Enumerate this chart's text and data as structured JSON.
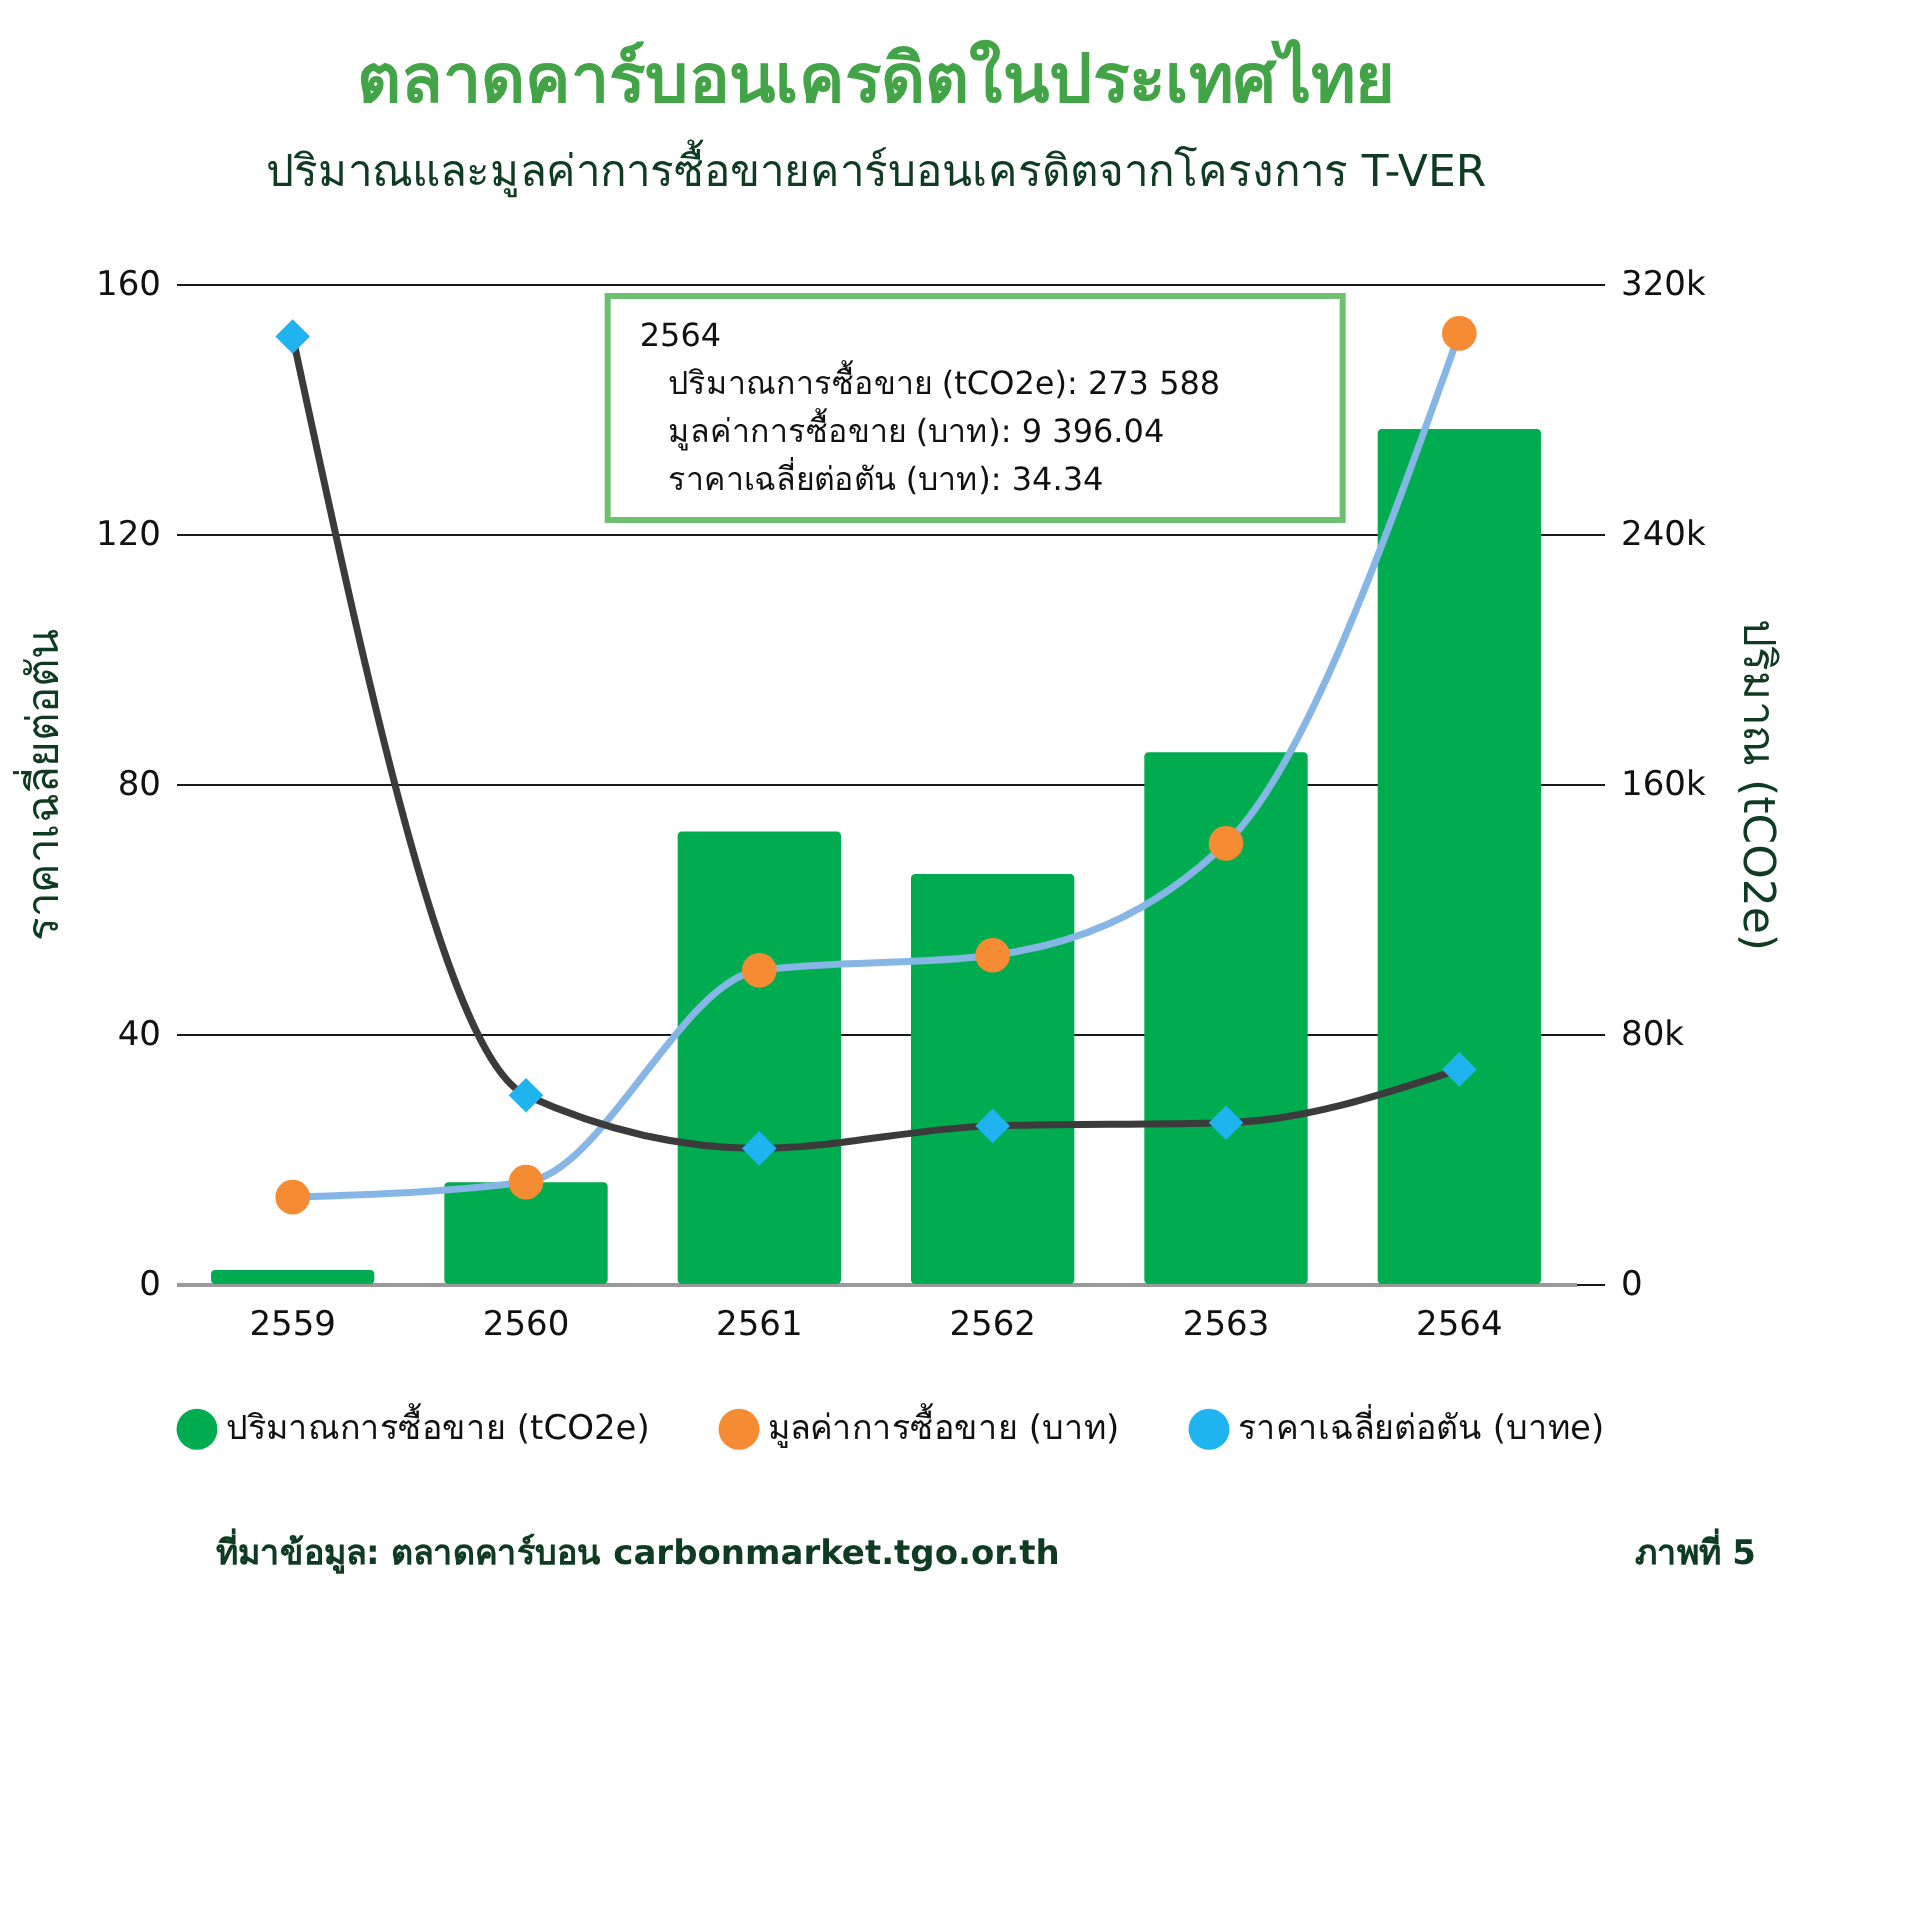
{
  "chart_data": {
    "type": "bar",
    "title": "ตลาดคาร์บอนเครดิตในประเทศไทย",
    "subtitle": "ปริมาณและมูลค่าการซื้อขายคาร์บอนเครดิตจากโครงการ T-VER",
    "ylabel": "ราคาเฉลี่ยต่อตัน",
    "y2label": "ปริมาณ (tCO2e)",
    "categories": [
      "2559",
      "2560",
      "2561",
      "2562",
      "2563",
      "2564"
    ],
    "series": [
      {
        "name": "ปริมาณการซื้อขาย (tCO2e)",
        "axis": "y2",
        "color": "#00ac4f",
        "values": [
          4500,
          32600,
          144800,
          131200,
          170200,
          273588
        ]
      },
      {
        "name": "มูลค่าการซื้อขาย (บาท)",
        "type": "line",
        "axis": "y",
        "color": "#85b6e6",
        "colors": [
          "#f58b33",
          "#f58b33",
          "#f58b33",
          "#f58b33",
          "#f58b33",
          "#f58b33"
        ],
        "marker": "circle",
        "values": [
          13.9,
          16.3,
          50.2,
          52.6,
          70.5,
          152.1
        ]
      },
      {
        "name": "ราคาเฉลี่ยต่อตัน (บาทe)",
        "type": "line",
        "axis": "y",
        "color": "#3b3b3b",
        "colors": [
          "#1fb4f0",
          "#1fb4f0",
          "#1fb4f0",
          "#1fb4f0",
          "#1fb4f0",
          "#1fb4f0"
        ],
        "marker": "diamond",
        "values": [
          151.6,
          30.2,
          21.7,
          25.3,
          25.8,
          34.34
        ]
      }
    ],
    "ylim": [
      0,
      160
    ],
    "yticks": [
      0,
      40,
      80,
      120,
      160
    ],
    "y2lim": [
      0,
      320000
    ],
    "y2ticks": [
      0,
      {
        "value": 80000,
        "label": "80k"
      },
      {
        "value": 160000,
        "label": "160k"
      },
      {
        "value": 240000,
        "label": "240k"
      },
      {
        "value": 320000,
        "label": "320k"
      }
    ],
    "grid": "y",
    "legend": "bottom",
    "annotations": [
      "2564",
      "ปริมาณการซื้อขาย (tCO2e): 273 588",
      "มูลค่าการซื้อขาย (บาท): 9 396.04",
      "ราคาเฉลี่ยต่อตัน (บาท): 34.34",
      "ที่มาข้อมูล: ตลาดคาร์บอน carbonmarket.tgo.or.th",
      "ภาพที่ 5"
    ]
  }
}
